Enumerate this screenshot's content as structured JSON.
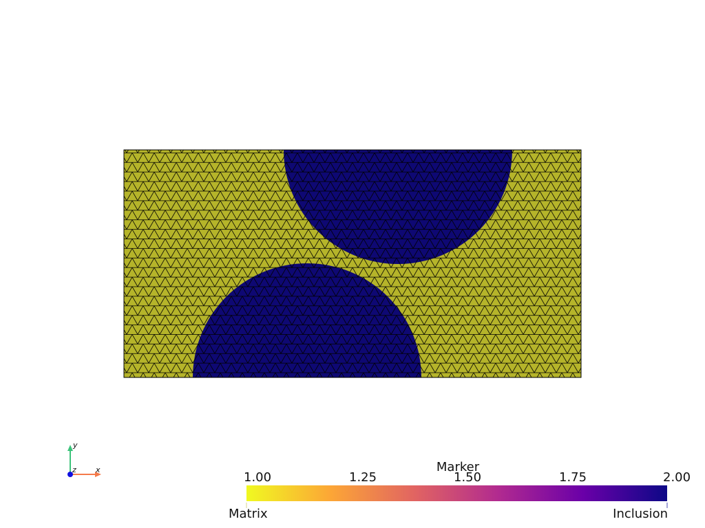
{
  "scene": {
    "background": "#ffffff",
    "matrix_color": "#b5b42a",
    "inclusion_color": "#0e0873",
    "edge_color": "#000000"
  },
  "scalar_bar": {
    "title": "Marker",
    "ticks": [
      "1.00",
      "1.25",
      "1.50",
      "1.75",
      "2.00"
    ],
    "annotation_low": "Matrix",
    "annotation_high": "Inclusion",
    "colormap": [
      "#f0f921",
      "#fca636",
      "#e16462",
      "#b12a90",
      "#6a00a8",
      "#0d0887"
    ]
  },
  "axes_widget": {
    "x_label": "x",
    "y_label": "y",
    "z_label": "z",
    "x_color": "#f47a4a",
    "y_color": "#3cc37a",
    "z_color": "#1010e0"
  }
}
